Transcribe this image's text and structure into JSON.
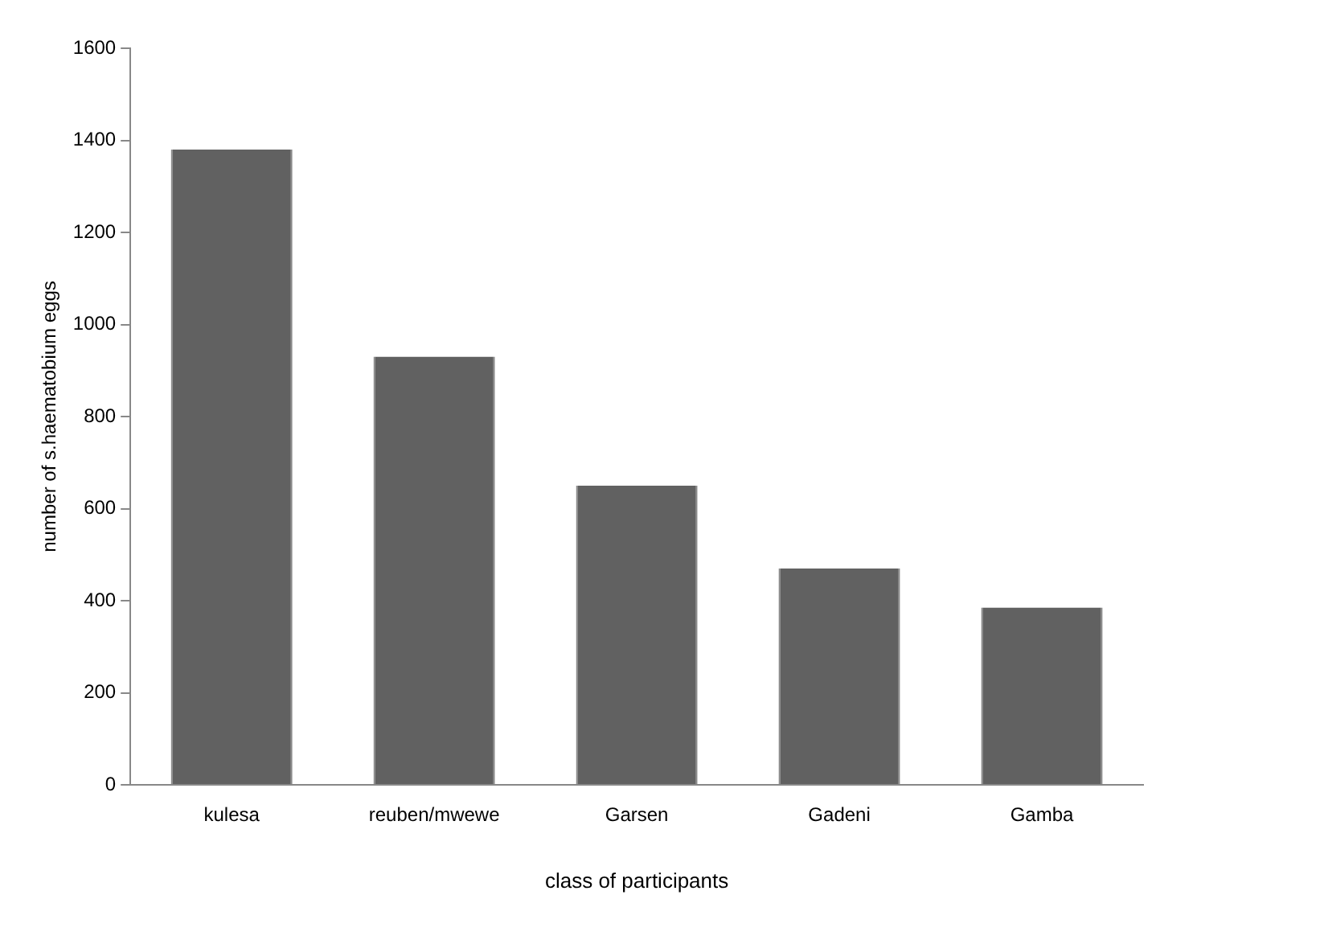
{
  "chart_data": {
    "type": "bar",
    "xlabel": "class of participants",
    "ylabel": "number of s.haematobium eggs",
    "categories": [
      "kulesa",
      "reuben/mwewe",
      "Garsen",
      "Gadeni",
      "Gamba"
    ],
    "values": [
      1380,
      930,
      650,
      470,
      385
    ],
    "color": "#616161",
    "ylim": [
      0,
      1600
    ],
    "yticks": [
      0,
      200,
      400,
      600,
      800,
      1000,
      1200,
      1400,
      1600
    ],
    "grid": false,
    "legend": false
  }
}
